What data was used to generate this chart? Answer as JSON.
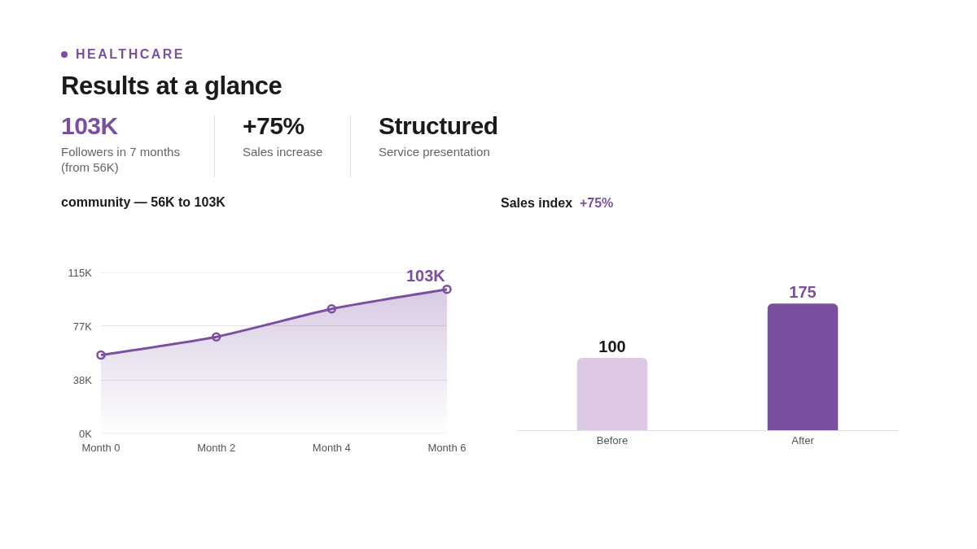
{
  "chart_data": [
    {
      "type": "other",
      "subtitle": "HEALTHCARE",
      "title": "Results at a glance",
      "annotations": [
        "103K",
        "Followers in 7 months\n(from 56K)",
        "+75%",
        "Sales increase",
        "Structured",
        "Service presentation"
      ]
    },
    {
      "type": "area",
      "title": "community — 56K to 103K",
      "categories": [
        "Month 0",
        "Month 2",
        "Month 4",
        "Month 6"
      ],
      "values": [
        56,
        69,
        89,
        103
      ],
      "color": "#7b4fa0",
      "ylim": [
        0,
        115
      ],
      "yticks": [
        {
          "value": 0,
          "label": "0K"
        },
        {
          "value": 38.33,
          "label": "38K"
        },
        {
          "value": 76.67,
          "label": "77K"
        },
        {
          "value": 115,
          "label": "115K"
        }
      ],
      "grid": "y",
      "marker": "circle",
      "line_style": "solid",
      "annotations": [
        {
          "text": "103K",
          "x": "Month 6",
          "y": 103
        }
      ]
    },
    {
      "type": "bar",
      "title": "Sales index",
      "subtitle": "+75%",
      "categories": [
        "Before",
        "After"
      ],
      "values": [
        100,
        175
      ],
      "colors": [
        "#dcc8e3",
        "#7b4fa0"
      ],
      "data_labels": true
    }
  ]
}
